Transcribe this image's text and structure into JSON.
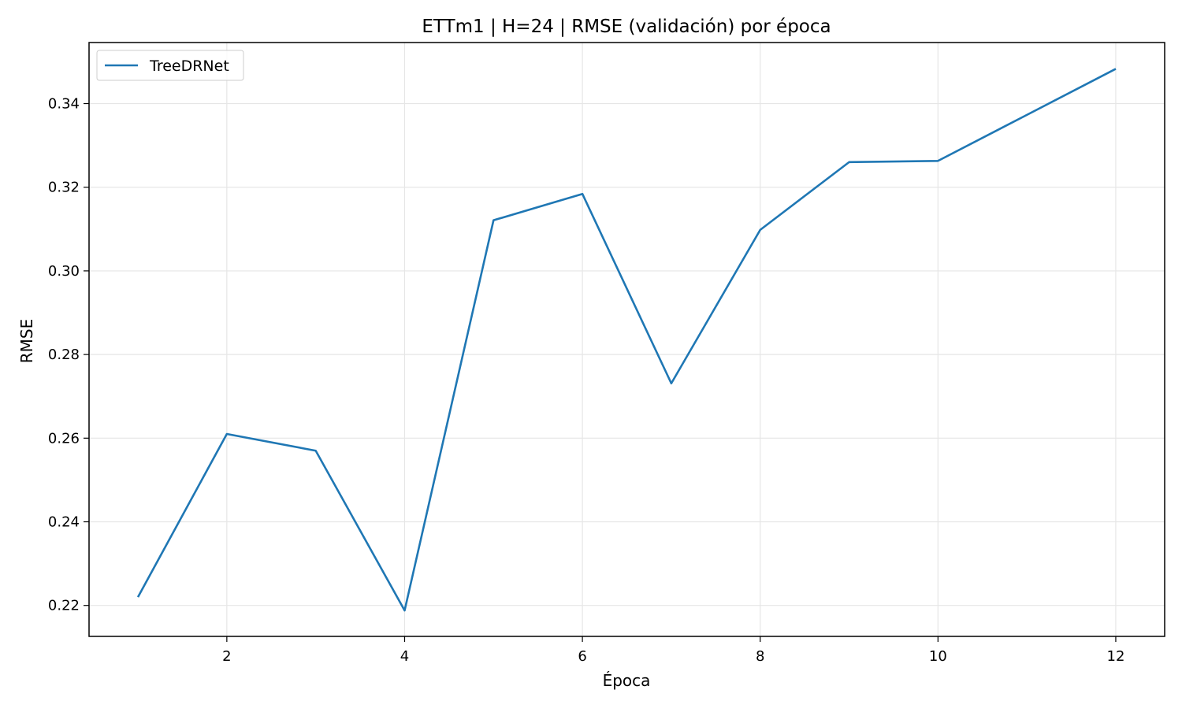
{
  "chart_data": {
    "type": "line",
    "title": "ETTm1 | H=24 | RMSE (validación) por época",
    "xlabel": "Época",
    "ylabel": "RMSE",
    "x": [
      1,
      2,
      3,
      4,
      5,
      6,
      7,
      8,
      9,
      10,
      11,
      12
    ],
    "series": [
      {
        "name": "TreeDRNet",
        "color": "#1f77b4",
        "values": [
          0.222,
          0.261,
          0.257,
          0.2188,
          0.3121,
          0.3184,
          0.2731,
          0.3098,
          0.326,
          0.3263,
          0.3373,
          0.3483
        ]
      }
    ],
    "xlim": [
      0.45,
      12.55
    ],
    "ylim": [
      0.2126,
      0.3546
    ],
    "xticks": [
      2,
      4,
      6,
      8,
      10,
      12
    ],
    "xtick_labels": [
      "2",
      "4",
      "6",
      "8",
      "10",
      "12"
    ],
    "yticks": [
      0.22,
      0.24,
      0.26,
      0.28,
      0.3,
      0.32,
      0.34
    ],
    "ytick_labels": [
      "0.22",
      "0.24",
      "0.26",
      "0.28",
      "0.30",
      "0.32",
      "0.34"
    ],
    "grid": true,
    "legend_position": "top-left"
  }
}
